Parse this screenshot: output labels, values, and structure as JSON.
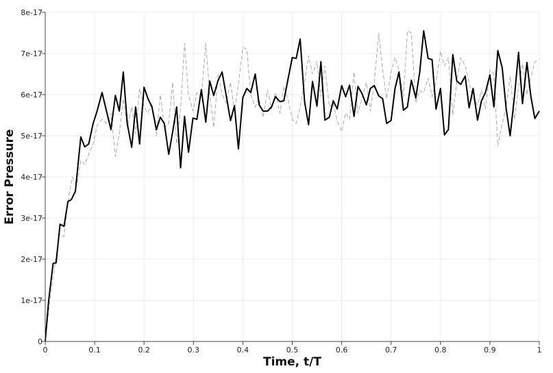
{
  "chart_data": {
    "type": "line",
    "title": "",
    "xlabel": "Time, t/T",
    "ylabel": "Error Pressure",
    "xlim": [
      0,
      1
    ],
    "ylim": [
      0,
      8e-17
    ],
    "x_ticks": [
      {
        "value": 0,
        "label": "0"
      },
      {
        "value": 0.1,
        "label": "0.1"
      },
      {
        "value": 0.2,
        "label": "0.2"
      },
      {
        "value": 0.3,
        "label": "0.3"
      },
      {
        "value": 0.4,
        "label": "0.4"
      },
      {
        "value": 0.5,
        "label": "0.5"
      },
      {
        "value": 0.6,
        "label": "0.6"
      },
      {
        "value": 0.7,
        "label": "0.7"
      },
      {
        "value": 0.8,
        "label": "0.8"
      },
      {
        "value": 0.9,
        "label": "0.9"
      },
      {
        "value": 1,
        "label": "1"
      }
    ],
    "y_ticks": [
      {
        "value": 0,
        "label": "0"
      },
      {
        "value": 1e-17,
        "label": "1e-17"
      },
      {
        "value": 2e-17,
        "label": "2e-17"
      },
      {
        "value": 3e-17,
        "label": "3e-17"
      },
      {
        "value": 4e-17,
        "label": "4e-17"
      },
      {
        "value": 5e-17,
        "label": "5e-17"
      },
      {
        "value": 6e-17,
        "label": "6e-17"
      },
      {
        "value": 7e-17,
        "label": "7e-17"
      },
      {
        "value": 8e-17,
        "label": "8e-17"
      }
    ],
    "grid": true,
    "legend": "none",
    "series": [
      {
        "style": "solid",
        "color": "#000000",
        "points": [
          [
            0,
            0
          ],
          [
            0.007,
            1e-17
          ],
          [
            0.016,
            1.9e-17
          ],
          [
            0.022,
            1.91e-17
          ],
          [
            0.03,
            2.85e-17
          ],
          [
            0.038,
            2.8e-17
          ],
          [
            0.046,
            3.4e-17
          ],
          [
            0.053,
            3.45e-17
          ],
          [
            0.061,
            3.65e-17
          ],
          [
            0.072,
            4.97e-17
          ],
          [
            0.08,
            4.73e-17
          ],
          [
            0.088,
            4.8e-17
          ],
          [
            0.097,
            5.3e-17
          ],
          [
            0.105,
            5.6e-17
          ],
          [
            0.115,
            6.05e-17
          ],
          [
            0.124,
            5.6e-17
          ],
          [
            0.133,
            5.15e-17
          ],
          [
            0.142,
            5.98e-17
          ],
          [
            0.15,
            5.6e-17
          ],
          [
            0.158,
            6.55e-17
          ],
          [
            0.166,
            5.3e-17
          ],
          [
            0.175,
            4.72e-17
          ],
          [
            0.183,
            5.7e-17
          ],
          [
            0.191,
            4.8e-17
          ],
          [
            0.2,
            6.18e-17
          ],
          [
            0.208,
            5.9e-17
          ],
          [
            0.216,
            5.7e-17
          ],
          [
            0.225,
            5.15e-17
          ],
          [
            0.233,
            5.45e-17
          ],
          [
            0.241,
            5.3e-17
          ],
          [
            0.25,
            4.55e-17
          ],
          [
            0.258,
            5.1e-17
          ],
          [
            0.266,
            5.7e-17
          ],
          [
            0.274,
            4.22e-17
          ],
          [
            0.282,
            5.47e-17
          ],
          [
            0.29,
            4.6e-17
          ],
          [
            0.299,
            5.43e-17
          ],
          [
            0.307,
            5.4e-17
          ],
          [
            0.316,
            6.12e-17
          ],
          [
            0.325,
            5.33e-17
          ],
          [
            0.333,
            6.33e-17
          ],
          [
            0.341,
            5.98e-17
          ],
          [
            0.35,
            6.35e-17
          ],
          [
            0.358,
            6.55e-17
          ],
          [
            0.366,
            6e-17
          ],
          [
            0.375,
            5.37e-17
          ],
          [
            0.383,
            5.73e-17
          ],
          [
            0.391,
            4.68e-17
          ],
          [
            0.4,
            5.93e-17
          ],
          [
            0.408,
            6.15e-17
          ],
          [
            0.416,
            6.05e-17
          ],
          [
            0.425,
            6.5e-17
          ],
          [
            0.433,
            5.75e-17
          ],
          [
            0.441,
            5.6e-17
          ],
          [
            0.45,
            5.6e-17
          ],
          [
            0.458,
            5.7e-17
          ],
          [
            0.466,
            5.95e-17
          ],
          [
            0.475,
            5.83e-17
          ],
          [
            0.483,
            5.85e-17
          ],
          [
            0.491,
            6.35e-17
          ],
          [
            0.5,
            6.9e-17
          ],
          [
            0.508,
            6.88e-17
          ],
          [
            0.516,
            7.35e-17
          ],
          [
            0.525,
            5.82e-17
          ],
          [
            0.533,
            5.27e-17
          ],
          [
            0.541,
            6.32e-17
          ],
          [
            0.55,
            5.72e-17
          ],
          [
            0.558,
            6.8e-17
          ],
          [
            0.566,
            5.38e-17
          ],
          [
            0.575,
            5.45e-17
          ],
          [
            0.583,
            5.85e-17
          ],
          [
            0.591,
            5.65e-17
          ],
          [
            0.6,
            6.22e-17
          ],
          [
            0.608,
            5.95e-17
          ],
          [
            0.616,
            6.23e-17
          ],
          [
            0.625,
            5.47e-17
          ],
          [
            0.633,
            6.2e-17
          ],
          [
            0.641,
            6.03e-17
          ],
          [
            0.65,
            5.75e-17
          ],
          [
            0.658,
            6.15e-17
          ],
          [
            0.666,
            6.22e-17
          ],
          [
            0.675,
            5.97e-17
          ],
          [
            0.683,
            5.9e-17
          ],
          [
            0.691,
            5.3e-17
          ],
          [
            0.7,
            5.37e-17
          ],
          [
            0.708,
            6.15e-17
          ],
          [
            0.716,
            6.55e-17
          ],
          [
            0.725,
            5.62e-17
          ],
          [
            0.733,
            5.7e-17
          ],
          [
            0.741,
            6.35e-17
          ],
          [
            0.75,
            5.92e-17
          ],
          [
            0.758,
            6.55e-17
          ],
          [
            0.766,
            7.55e-17
          ],
          [
            0.775,
            6.88e-17
          ],
          [
            0.783,
            6.85e-17
          ],
          [
            0.791,
            5.65e-17
          ],
          [
            0.8,
            6.15e-17
          ],
          [
            0.808,
            5.02e-17
          ],
          [
            0.816,
            5.15e-17
          ],
          [
            0.825,
            6.97e-17
          ],
          [
            0.833,
            6.33e-17
          ],
          [
            0.841,
            6.25e-17
          ],
          [
            0.85,
            6.45e-17
          ],
          [
            0.858,
            5.68e-17
          ],
          [
            0.866,
            6.15e-17
          ],
          [
            0.875,
            5.38e-17
          ],
          [
            0.883,
            5.85e-17
          ],
          [
            0.891,
            6.05e-17
          ],
          [
            0.9,
            6.48e-17
          ],
          [
            0.908,
            5.7e-17
          ],
          [
            0.916,
            7.07e-17
          ],
          [
            0.925,
            6.65e-17
          ],
          [
            0.933,
            5.65e-17
          ],
          [
            0.941,
            5e-17
          ],
          [
            0.95,
            5.98e-17
          ],
          [
            0.958,
            7.03e-17
          ],
          [
            0.966,
            5.78e-17
          ],
          [
            0.975,
            6.78e-17
          ],
          [
            0.983,
            5.95e-17
          ],
          [
            0.991,
            5.42e-17
          ],
          [
            1.0,
            5.6e-17
          ]
        ]
      },
      {
        "style": "dashed",
        "color": "#aaaaaa",
        "points": [
          [
            0,
            0
          ],
          [
            0.01,
            1.05e-17
          ],
          [
            0.02,
            1.9e-17
          ],
          [
            0.028,
            2.6e-17
          ],
          [
            0.038,
            2.55e-17
          ],
          [
            0.046,
            3.4e-17
          ],
          [
            0.055,
            4e-17
          ],
          [
            0.064,
            3.8e-17
          ],
          [
            0.072,
            4.4e-17
          ],
          [
            0.08,
            4.3e-17
          ],
          [
            0.088,
            4.55e-17
          ],
          [
            0.097,
            4.8e-17
          ],
          [
            0.105,
            5.25e-17
          ],
          [
            0.115,
            5.4e-17
          ],
          [
            0.124,
            5.3e-17
          ],
          [
            0.133,
            5.55e-17
          ],
          [
            0.142,
            4.5e-17
          ],
          [
            0.15,
            5.05e-17
          ],
          [
            0.158,
            5.9e-17
          ],
          [
            0.166,
            5.2e-17
          ],
          [
            0.175,
            5.7e-17
          ],
          [
            0.183,
            5.05e-17
          ],
          [
            0.191,
            6.15e-17
          ],
          [
            0.2,
            5.7e-17
          ],
          [
            0.208,
            5.55e-17
          ],
          [
            0.216,
            5.8e-17
          ],
          [
            0.225,
            5e-17
          ],
          [
            0.233,
            6e-17
          ],
          [
            0.241,
            5.2e-17
          ],
          [
            0.25,
            5.3e-17
          ],
          [
            0.258,
            6.3e-17
          ],
          [
            0.266,
            4.8e-17
          ],
          [
            0.274,
            5.65e-17
          ],
          [
            0.282,
            7.25e-17
          ],
          [
            0.29,
            6e-17
          ],
          [
            0.299,
            5.6e-17
          ],
          [
            0.307,
            6.05e-17
          ],
          [
            0.316,
            5.95e-17
          ],
          [
            0.325,
            7.25e-17
          ],
          [
            0.333,
            6e-17
          ],
          [
            0.341,
            5.2e-17
          ],
          [
            0.35,
            6.5e-17
          ],
          [
            0.358,
            6e-17
          ],
          [
            0.366,
            5.8e-17
          ],
          [
            0.375,
            6.3e-17
          ],
          [
            0.383,
            5.6e-17
          ],
          [
            0.391,
            6.25e-17
          ],
          [
            0.4,
            7.15e-17
          ],
          [
            0.408,
            7.1e-17
          ],
          [
            0.416,
            6e-17
          ],
          [
            0.425,
            5.7e-17
          ],
          [
            0.433,
            5.9e-17
          ],
          [
            0.441,
            5.45e-17
          ],
          [
            0.45,
            6.1e-17
          ],
          [
            0.458,
            5.65e-17
          ],
          [
            0.466,
            6.05e-17
          ],
          [
            0.475,
            5.55e-17
          ],
          [
            0.483,
            6.2e-17
          ],
          [
            0.491,
            5.9e-17
          ],
          [
            0.5,
            5.4e-17
          ],
          [
            0.508,
            5.3e-17
          ],
          [
            0.516,
            5.7e-17
          ],
          [
            0.525,
            6.3e-17
          ],
          [
            0.533,
            6.95e-17
          ],
          [
            0.541,
            6.5e-17
          ],
          [
            0.55,
            6.8e-17
          ],
          [
            0.558,
            5.95e-17
          ],
          [
            0.566,
            6.7e-17
          ],
          [
            0.575,
            5.7e-17
          ],
          [
            0.583,
            5.8e-17
          ],
          [
            0.591,
            5.35e-17
          ],
          [
            0.6,
            5.1e-17
          ],
          [
            0.608,
            5.55e-17
          ],
          [
            0.616,
            5.4e-17
          ],
          [
            0.625,
            6.55e-17
          ],
          [
            0.633,
            5.55e-17
          ],
          [
            0.641,
            5.9e-17
          ],
          [
            0.65,
            6.3e-17
          ],
          [
            0.658,
            5.6e-17
          ],
          [
            0.666,
            6.3e-17
          ],
          [
            0.675,
            7.5e-17
          ],
          [
            0.683,
            6.6e-17
          ],
          [
            0.691,
            5.9e-17
          ],
          [
            0.7,
            6.55e-17
          ],
          [
            0.708,
            6.9e-17
          ],
          [
            0.716,
            6.6e-17
          ],
          [
            0.725,
            5.95e-17
          ],
          [
            0.733,
            7.55e-17
          ],
          [
            0.741,
            7.5e-17
          ],
          [
            0.75,
            5.8e-17
          ],
          [
            0.758,
            6.1e-17
          ],
          [
            0.766,
            6.05e-17
          ],
          [
            0.775,
            6.4e-17
          ],
          [
            0.783,
            5.95e-17
          ],
          [
            0.791,
            6.3e-17
          ],
          [
            0.8,
            7.05e-17
          ],
          [
            0.808,
            6.7e-17
          ],
          [
            0.816,
            6.9e-17
          ],
          [
            0.825,
            5.5e-17
          ],
          [
            0.833,
            6.3e-17
          ],
          [
            0.841,
            6.9e-17
          ],
          [
            0.85,
            6.7e-17
          ],
          [
            0.858,
            6.3e-17
          ],
          [
            0.866,
            5.9e-17
          ],
          [
            0.875,
            5.75e-17
          ],
          [
            0.883,
            6.1e-17
          ],
          [
            0.891,
            5.65e-17
          ],
          [
            0.9,
            6.6e-17
          ],
          [
            0.908,
            6.5e-17
          ],
          [
            0.916,
            4.75e-17
          ],
          [
            0.925,
            5.3e-17
          ],
          [
            0.933,
            5.7e-17
          ],
          [
            0.941,
            6.45e-17
          ],
          [
            0.95,
            5.4e-17
          ],
          [
            0.958,
            6.2e-17
          ],
          [
            0.966,
            6.75e-17
          ],
          [
            0.975,
            6e-17
          ],
          [
            0.983,
            6.4e-17
          ],
          [
            0.991,
            6.8e-17
          ],
          [
            1.0,
            6.85e-17
          ]
        ]
      }
    ]
  }
}
